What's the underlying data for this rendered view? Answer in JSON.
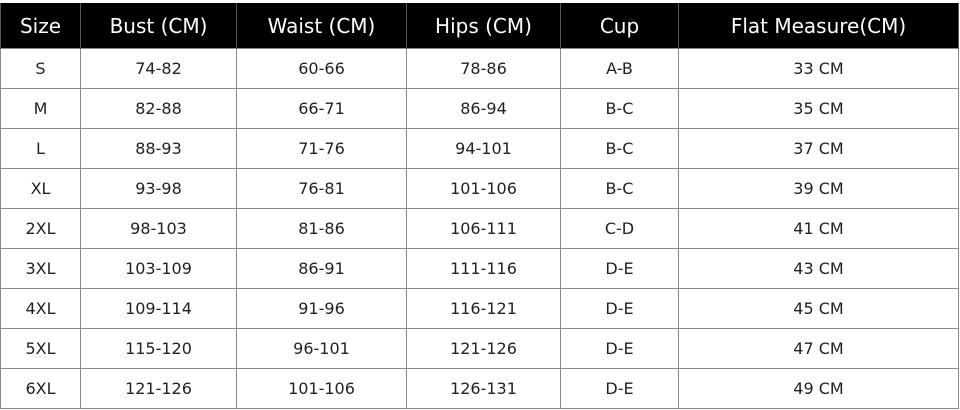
{
  "headers": [
    "Size",
    "Bust (CM)",
    "Waist (CM)",
    "Hips (CM)",
    "Cup",
    "Flat Measure(CM)"
  ],
  "rows": [
    [
      "S",
      "74-82",
      "60-66",
      "78-86",
      "A-B",
      "33 CM"
    ],
    [
      "M",
      "82-88",
      "66-71",
      "86-94",
      "B-C",
      "35 CM"
    ],
    [
      "L",
      "88-93",
      "71-76",
      "94-101",
      "B-C",
      "37 CM"
    ],
    [
      "XL",
      "93-98",
      "76-81",
      "101-106",
      "B-C",
      "39 CM"
    ],
    [
      "2XL",
      "98-103",
      "81-86",
      "106-111",
      "C-D",
      "41 CM"
    ],
    [
      "3XL",
      "103-109",
      "86-91",
      "111-116",
      "D-E",
      "43 CM"
    ],
    [
      "4XL",
      "109-114",
      "91-96",
      "116-121",
      "D-E",
      "45 CM"
    ],
    [
      "5XL",
      "115-120",
      "96-101",
      "121-126",
      "D-E",
      "47 CM"
    ],
    [
      "6XL",
      "121-126",
      "101-106",
      "126-131",
      "D-E",
      "49 CM"
    ]
  ]
}
